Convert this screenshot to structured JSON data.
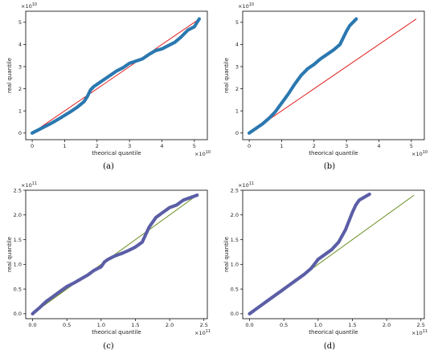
{
  "chart_data": [
    {
      "type": "scatter",
      "caption": "(a)",
      "xlabel": "theorical quantile",
      "ylabel": "real quantile",
      "x_scale_label": "×10",
      "x_scale_exp": "10",
      "y_scale_label": "×10",
      "y_scale_exp": "10",
      "xlim": [
        -0.2,
        5.4
      ],
      "ylim": [
        -0.3,
        5.5
      ],
      "xticks": [
        0,
        1,
        2,
        3,
        4,
        5
      ],
      "xtick_labels": [
        "0",
        "1",
        "2",
        "3",
        "4",
        "5"
      ],
      "yticks": [
        0,
        1,
        2,
        3,
        4,
        5
      ],
      "ytick_labels": [
        "0",
        "1",
        "2",
        "3",
        "4",
        "5"
      ],
      "reference_line": {
        "x": [
          0,
          5.15
        ],
        "y": [
          0,
          5.15
        ],
        "color": "#e02020"
      },
      "marker_color": "#2b78b0",
      "points": [
        [
          0,
          0
        ],
        [
          0.2,
          0.15
        ],
        [
          0.4,
          0.3
        ],
        [
          0.6,
          0.45
        ],
        [
          0.8,
          0.62
        ],
        [
          1.0,
          0.8
        ],
        [
          1.2,
          0.98
        ],
        [
          1.4,
          1.18
        ],
        [
          1.6,
          1.42
        ],
        [
          1.7,
          1.65
        ],
        [
          1.8,
          1.95
        ],
        [
          1.9,
          2.1
        ],
        [
          2.0,
          2.2
        ],
        [
          2.2,
          2.4
        ],
        [
          2.4,
          2.6
        ],
        [
          2.6,
          2.8
        ],
        [
          2.8,
          2.95
        ],
        [
          3.0,
          3.15
        ],
        [
          3.2,
          3.25
        ],
        [
          3.4,
          3.35
        ],
        [
          3.6,
          3.55
        ],
        [
          3.8,
          3.72
        ],
        [
          4.0,
          3.8
        ],
        [
          4.2,
          3.95
        ],
        [
          4.4,
          4.1
        ],
        [
          4.6,
          4.35
        ],
        [
          4.8,
          4.65
        ],
        [
          5.0,
          4.8
        ],
        [
          5.15,
          5.15
        ]
      ]
    },
    {
      "type": "scatter",
      "caption": "(b)",
      "xlabel": "theorical quantile",
      "ylabel": "real quantile",
      "x_scale_label": "×10",
      "x_scale_exp": "10",
      "y_scale_label": "×10",
      "y_scale_exp": "10",
      "xlim": [
        -0.2,
        5.4
      ],
      "ylim": [
        -0.3,
        5.5
      ],
      "xticks": [
        0,
        1,
        2,
        3,
        4,
        5
      ],
      "xtick_labels": [
        "0",
        "1",
        "2",
        "3",
        "4",
        "5"
      ],
      "yticks": [
        0,
        1,
        2,
        3,
        4,
        5
      ],
      "ytick_labels": [
        "0",
        "1",
        "2",
        "3",
        "4",
        "5"
      ],
      "reference_line": {
        "x": [
          0,
          5.15
        ],
        "y": [
          0,
          5.15
        ],
        "color": "#e02020"
      },
      "marker_color": "#2b78b0",
      "points": [
        [
          0,
          0
        ],
        [
          0.2,
          0.2
        ],
        [
          0.4,
          0.4
        ],
        [
          0.6,
          0.65
        ],
        [
          0.8,
          0.95
        ],
        [
          1.0,
          1.35
        ],
        [
          1.2,
          1.75
        ],
        [
          1.4,
          2.2
        ],
        [
          1.6,
          2.6
        ],
        [
          1.8,
          2.9
        ],
        [
          2.0,
          3.1
        ],
        [
          2.2,
          3.35
        ],
        [
          2.4,
          3.55
        ],
        [
          2.6,
          3.75
        ],
        [
          2.8,
          4.0
        ],
        [
          2.9,
          4.3
        ],
        [
          3.0,
          4.6
        ],
        [
          3.1,
          4.85
        ],
        [
          3.2,
          5.0
        ],
        [
          3.3,
          5.15
        ]
      ]
    },
    {
      "type": "scatter",
      "caption": "(c)",
      "xlabel": "theorical quantile",
      "ylabel": "real quantile",
      "x_scale_label": "×10",
      "x_scale_exp": "11",
      "y_scale_label": "×10",
      "y_scale_exp": "11",
      "xlim": [
        -0.1,
        2.55
      ],
      "ylim": [
        -0.1,
        2.5
      ],
      "xticks": [
        0,
        0.5,
        1.0,
        1.5,
        2.0,
        2.5
      ],
      "xtick_labels": [
        "0.0",
        "0.5",
        "1.0",
        "1.5",
        "2.0",
        "2.5"
      ],
      "yticks": [
        0,
        0.5,
        1.0,
        1.5,
        2.0,
        2.5
      ],
      "ytick_labels": [
        "0.0",
        "0.5",
        "1.0",
        "1.5",
        "2.0",
        "2.5"
      ],
      "reference_line": {
        "x": [
          0,
          2.4
        ],
        "y": [
          0,
          2.4
        ],
        "color": "#6b8e23"
      },
      "marker_color": "#5b5ea6",
      "points": [
        [
          0,
          0
        ],
        [
          0.1,
          0.12
        ],
        [
          0.2,
          0.25
        ],
        [
          0.3,
          0.35
        ],
        [
          0.4,
          0.45
        ],
        [
          0.5,
          0.55
        ],
        [
          0.6,
          0.62
        ],
        [
          0.7,
          0.7
        ],
        [
          0.8,
          0.78
        ],
        [
          0.9,
          0.88
        ],
        [
          1.0,
          0.95
        ],
        [
          1.05,
          1.05
        ],
        [
          1.1,
          1.1
        ],
        [
          1.2,
          1.17
        ],
        [
          1.3,
          1.22
        ],
        [
          1.4,
          1.28
        ],
        [
          1.5,
          1.35
        ],
        [
          1.6,
          1.45
        ],
        [
          1.7,
          1.75
        ],
        [
          1.8,
          1.95
        ],
        [
          1.9,
          2.05
        ],
        [
          2.0,
          2.15
        ],
        [
          2.1,
          2.2
        ],
        [
          2.2,
          2.3
        ],
        [
          2.3,
          2.35
        ],
        [
          2.4,
          2.4
        ]
      ]
    },
    {
      "type": "scatter",
      "caption": "(d)",
      "xlabel": "theorical quantile",
      "ylabel": "real quantile",
      "x_scale_label": "×10",
      "x_scale_exp": "11",
      "y_scale_label": "×10",
      "y_scale_exp": "11",
      "xlim": [
        -0.1,
        2.55
      ],
      "ylim": [
        -0.1,
        2.5
      ],
      "xticks": [
        0,
        0.5,
        1.0,
        1.5,
        2.0,
        2.5
      ],
      "xtick_labels": [
        "0.0",
        "0.5",
        "1.0",
        "1.5",
        "2.0",
        "2.5"
      ],
      "yticks": [
        0,
        0.5,
        1.0,
        1.5,
        2.0,
        2.5
      ],
      "ytick_labels": [
        "0.0",
        "0.5",
        "1.0",
        "1.5",
        "2.0",
        "2.5"
      ],
      "reference_line": {
        "x": [
          0,
          2.4
        ],
        "y": [
          0,
          2.4
        ],
        "color": "#6b8e23"
      },
      "marker_color": "#5b5ea6",
      "points": [
        [
          0,
          0
        ],
        [
          0.1,
          0.1
        ],
        [
          0.2,
          0.2
        ],
        [
          0.3,
          0.3
        ],
        [
          0.4,
          0.4
        ],
        [
          0.5,
          0.5
        ],
        [
          0.6,
          0.6
        ],
        [
          0.7,
          0.7
        ],
        [
          0.8,
          0.8
        ],
        [
          0.9,
          0.92
        ],
        [
          1.0,
          1.1
        ],
        [
          1.1,
          1.2
        ],
        [
          1.2,
          1.3
        ],
        [
          1.3,
          1.45
        ],
        [
          1.4,
          1.7
        ],
        [
          1.5,
          2.05
        ],
        [
          1.55,
          2.2
        ],
        [
          1.6,
          2.3
        ],
        [
          1.7,
          2.38
        ],
        [
          1.75,
          2.42
        ]
      ]
    }
  ]
}
